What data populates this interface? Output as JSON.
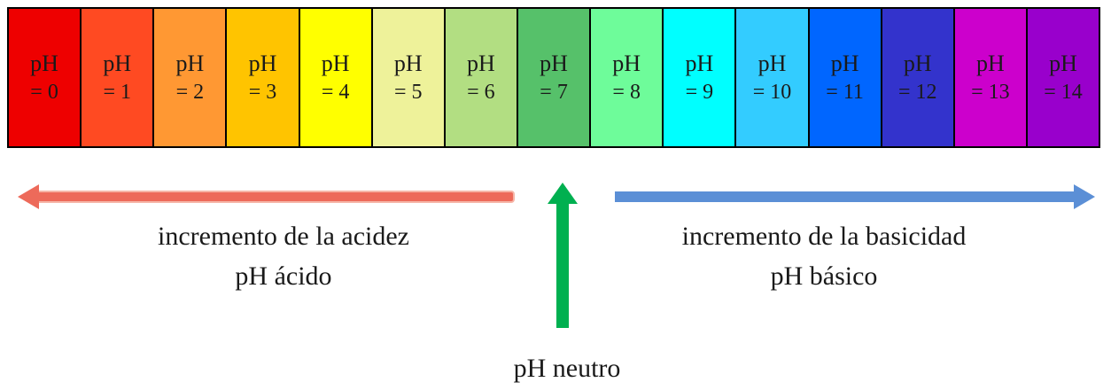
{
  "scale": {
    "cells": [
      {
        "line1": "pH",
        "line2": "= 0",
        "color": "#ee0000"
      },
      {
        "line1": "pH",
        "line2": "= 1",
        "color": "#ff4a22"
      },
      {
        "line1": "pH",
        "line2": "= 2",
        "color": "#ff9833"
      },
      {
        "line1": "pH",
        "line2": "= 3",
        "color": "#ffc400"
      },
      {
        "line1": "pH",
        "line2": "= 4",
        "color": "#ffff00"
      },
      {
        "line1": "pH",
        "line2": "= 5",
        "color": "#eef29a"
      },
      {
        "line1": "pH",
        "line2": "= 6",
        "color": "#b2de82"
      },
      {
        "line1": "pH",
        "line2": "= 7",
        "color": "#56c16a"
      },
      {
        "line1": "pH",
        "line2": "= 8",
        "color": "#6efc9a"
      },
      {
        "line1": "pH",
        "line2": "= 9",
        "color": "#00ffff"
      },
      {
        "line1": "pH",
        "line2": "= 10",
        "color": "#33ccff"
      },
      {
        "line1": "pH",
        "line2": "= 11",
        "color": "#0066ff"
      },
      {
        "line1": "pH",
        "line2": "= 12",
        "color": "#3333cc"
      },
      {
        "line1": "pH",
        "line2": "= 13",
        "color": "#cc00cc"
      },
      {
        "line1": "pH",
        "line2": "= 14",
        "color": "#9900cc"
      }
    ]
  },
  "acid": {
    "line1": "incremento de la acidez",
    "line2": "pH ácido",
    "arrow_color": "#ed6a5a"
  },
  "base": {
    "line1": "incremento de la basicidad",
    "line2": "pH básico",
    "arrow_color": "#5b8fd6"
  },
  "neutral": {
    "label": "pH neutro",
    "arrow_color": "#00b050"
  }
}
